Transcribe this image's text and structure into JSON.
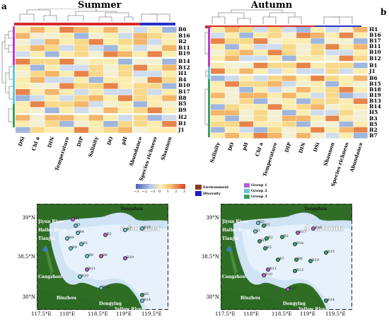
{
  "panels": {
    "a": {
      "letter": "a",
      "title": "Summer",
      "rows": [
        "B6",
        "B16",
        "B2",
        "B11",
        "B19",
        "B14",
        "B12",
        "H1",
        "B4",
        "B10",
        "B17",
        "B8",
        "B5",
        "B9",
        "H2",
        "B1",
        "J1"
      ],
      "cols": [
        "DSi",
        "Chl a",
        "DIN",
        "Temperature",
        "DIP",
        "Salinity",
        "DO",
        "pH",
        "Abundance",
        "Species richness",
        "Shannon"
      ]
    },
    "b": {
      "letter": "b",
      "title": "Autumn",
      "rows": [
        "H1",
        "B16",
        "B17",
        "B11",
        "B10",
        "B12",
        "B1",
        "J1",
        "B6",
        "B15",
        "B18",
        "B19",
        "B13",
        "B14",
        "H5",
        "B3",
        "B5",
        "B2",
        "B7"
      ],
      "cols": [
        "Salinity",
        "DO",
        "pH",
        "Chl a",
        "Temperature",
        "DIP",
        "DIN",
        "DSi",
        "Shannon",
        "Species richness",
        "Abundance"
      ]
    }
  },
  "legend": {
    "scale_ticks": [
      "−3",
      "−2",
      "−1",
      "0",
      "1",
      "2",
      "3"
    ],
    "environment": "Environment",
    "diversity": "Diversity",
    "group1": "Group 1",
    "group2": "Group 2",
    "group3": "Group 3",
    "colors": {
      "environment": "#8b3a1a",
      "diversity": "#1a1ac8",
      "group1": "#b45ad8",
      "group2": "#66c8d0",
      "group3": "#3aa060"
    }
  },
  "maps": {
    "c": {
      "title": "c.Summer",
      "places": [
        "Tangshan",
        "Jiyun River",
        "Haihe River",
        "Tianjin",
        "Cangzhou",
        "Binzhou",
        "Dongying",
        "Yellow River"
      ],
      "lat": [
        "39°N",
        "38.5°N",
        "38°N"
      ],
      "lon": [
        "117.5°E",
        "118°E",
        "118.5°E",
        "119°E",
        "119.5°E"
      ],
      "stations": [
        "H1",
        "J1",
        "B16",
        "B7",
        "B4",
        "H4",
        "B5",
        "B9",
        "B2",
        "B8",
        "B6",
        "B19",
        "B11",
        "B10",
        "B12",
        "B14",
        "H2"
      ]
    },
    "d": {
      "title": "d.Autumn",
      "places": [
        "Tangshan",
        "Jiyun River",
        "Haihe River",
        "Tianjin",
        "Cangzhou",
        "Binzhou",
        "Dongying",
        "Yellow River"
      ],
      "lat": [
        "39°N",
        "38.5°N",
        "38°N"
      ],
      "lon": [
        "117.5°E",
        "118°E",
        "118.5°E",
        "119°E",
        "119.5°E"
      ],
      "stations": [
        "H1",
        "B1",
        "J1",
        "B3",
        "B2",
        "B17",
        "B16",
        "H5",
        "B5",
        "B18",
        "B15",
        "B7",
        "B6",
        "B19",
        "B11",
        "B10",
        "B13",
        "B12",
        "B14"
      ]
    }
  }
}
